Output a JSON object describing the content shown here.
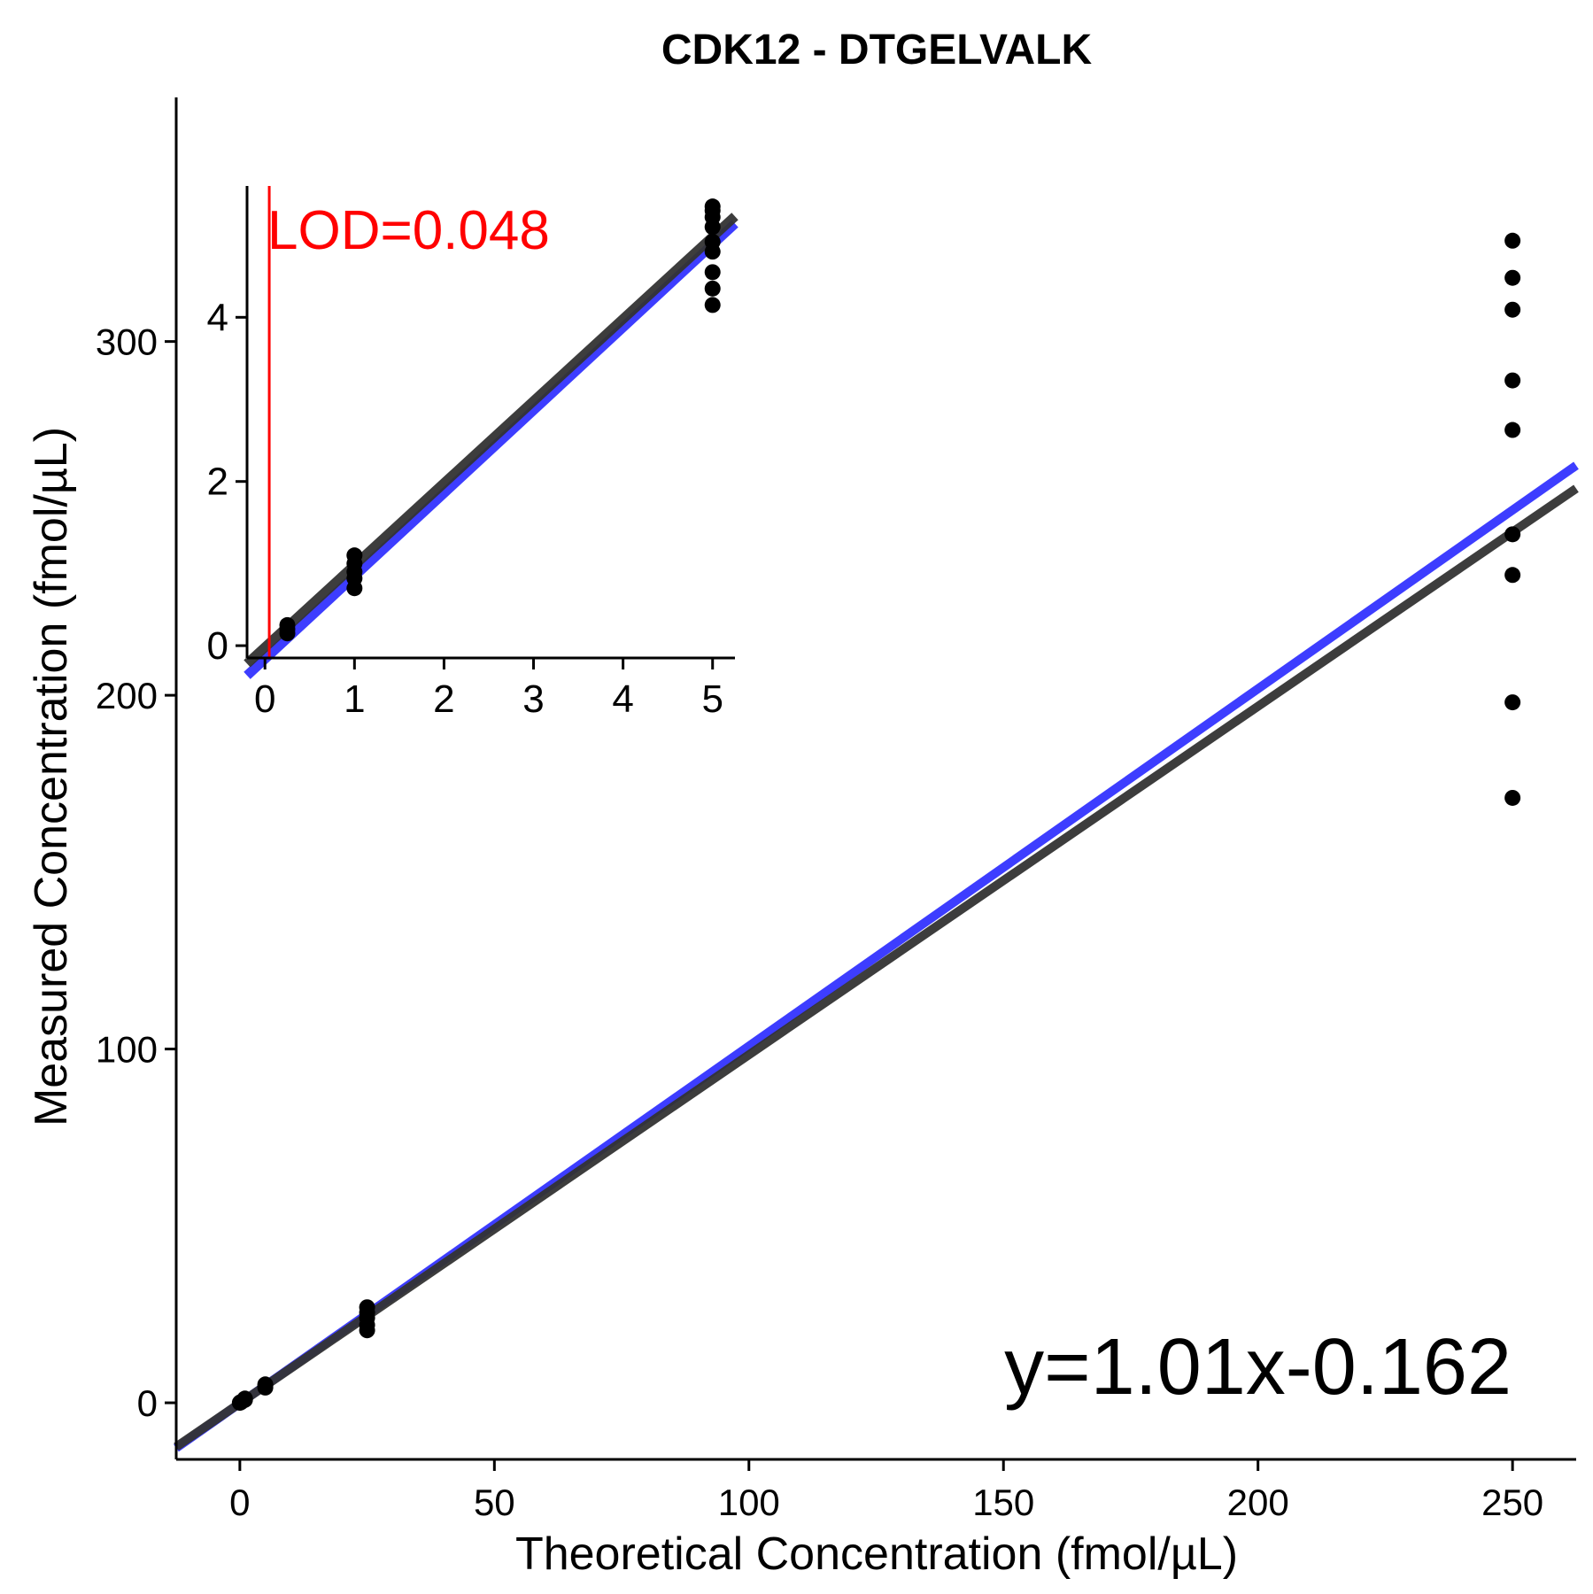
{
  "chart_data": {
    "type": "scatter",
    "title": "CDK12 - DTGELVALK",
    "xlabel": "Theoretical Concentration (fmol/µL)",
    "ylabel": "Measured Concentration (fmol/µL)",
    "xlim": [
      -12.5,
      262.5
    ],
    "ylim": [
      -16,
      369
    ],
    "x_ticks": [
      0,
      50,
      100,
      150,
      200,
      250
    ],
    "y_ticks": [
      0,
      100,
      200,
      300
    ],
    "x_tick_labels": [
      "0",
      "50",
      "100",
      "150",
      "200",
      "250"
    ],
    "y_tick_labels": [
      "0",
      "100",
      "200",
      "300"
    ],
    "grid": false,
    "equation": "y=1.01x-0.162",
    "points": [
      {
        "x": 0,
        "y": 0
      },
      {
        "x": 0.05,
        "y": 0.1
      },
      {
        "x": 0.25,
        "y": 0.2
      },
      {
        "x": 0.25,
        "y": 0.25
      },
      {
        "x": 1,
        "y": 0.82
      },
      {
        "x": 1,
        "y": 1.0
      },
      {
        "x": 1,
        "y": 1.2
      },
      {
        "x": 5,
        "y": 4.3
      },
      {
        "x": 5,
        "y": 4.8
      },
      {
        "x": 5,
        "y": 5.2
      },
      {
        "x": 25,
        "y": 20.5
      },
      {
        "x": 25,
        "y": 22
      },
      {
        "x": 25,
        "y": 24
      },
      {
        "x": 25,
        "y": 25.5
      },
      {
        "x": 25,
        "y": 27
      },
      {
        "x": 250,
        "y": 171
      },
      {
        "x": 250,
        "y": 198
      },
      {
        "x": 250,
        "y": 234
      },
      {
        "x": 250,
        "y": 245.5
      },
      {
        "x": 250,
        "y": 275
      },
      {
        "x": 250,
        "y": 289
      },
      {
        "x": 250,
        "y": 309
      },
      {
        "x": 250,
        "y": 318
      },
      {
        "x": 250,
        "y": 328.5
      }
    ],
    "fit_lines": [
      {
        "color": "#3333ff",
        "slope": 1.01,
        "intercept": -0.162
      },
      {
        "color": "#333333",
        "slope": 0.985,
        "intercept": -0.12
      }
    ],
    "inset": {
      "xlim": [
        -0.2,
        5.25
      ],
      "ylim": [
        -0.15,
        5.6
      ],
      "x_ticks": [
        0,
        1,
        2,
        3,
        4,
        5
      ],
      "y_ticks": [
        0,
        2,
        4
      ],
      "x_tick_labels": [
        "0",
        "1",
        "2",
        "3",
        "4",
        "5"
      ],
      "y_tick_labels": [
        "0",
        "2",
        "4"
      ],
      "lod_value": 0.048,
      "lod_label": "LOD=0.048",
      "lod_color": "#ff0000",
      "points": [
        {
          "x": 0.25,
          "y": 0.15
        },
        {
          "x": 0.25,
          "y": 0.2
        },
        {
          "x": 0.25,
          "y": 0.25
        },
        {
          "x": 1,
          "y": 0.7
        },
        {
          "x": 1,
          "y": 0.82
        },
        {
          "x": 1,
          "y": 0.9
        },
        {
          "x": 1,
          "y": 1.0
        },
        {
          "x": 1,
          "y": 1.1
        },
        {
          "x": 5,
          "y": 4.15
        },
        {
          "x": 5,
          "y": 4.35
        },
        {
          "x": 5,
          "y": 4.55
        },
        {
          "x": 5,
          "y": 4.8
        },
        {
          "x": 5,
          "y": 4.92
        },
        {
          "x": 5,
          "y": 5.1
        },
        {
          "x": 5,
          "y": 5.22
        },
        {
          "x": 5,
          "y": 5.3
        },
        {
          "x": 5,
          "y": 5.35
        }
      ],
      "fit_lines": [
        {
          "color": "#3333ff",
          "slope": 1.01,
          "intercept": -0.162
        },
        {
          "color": "#333333",
          "slope": 1.0,
          "intercept": -0.02
        }
      ]
    }
  }
}
